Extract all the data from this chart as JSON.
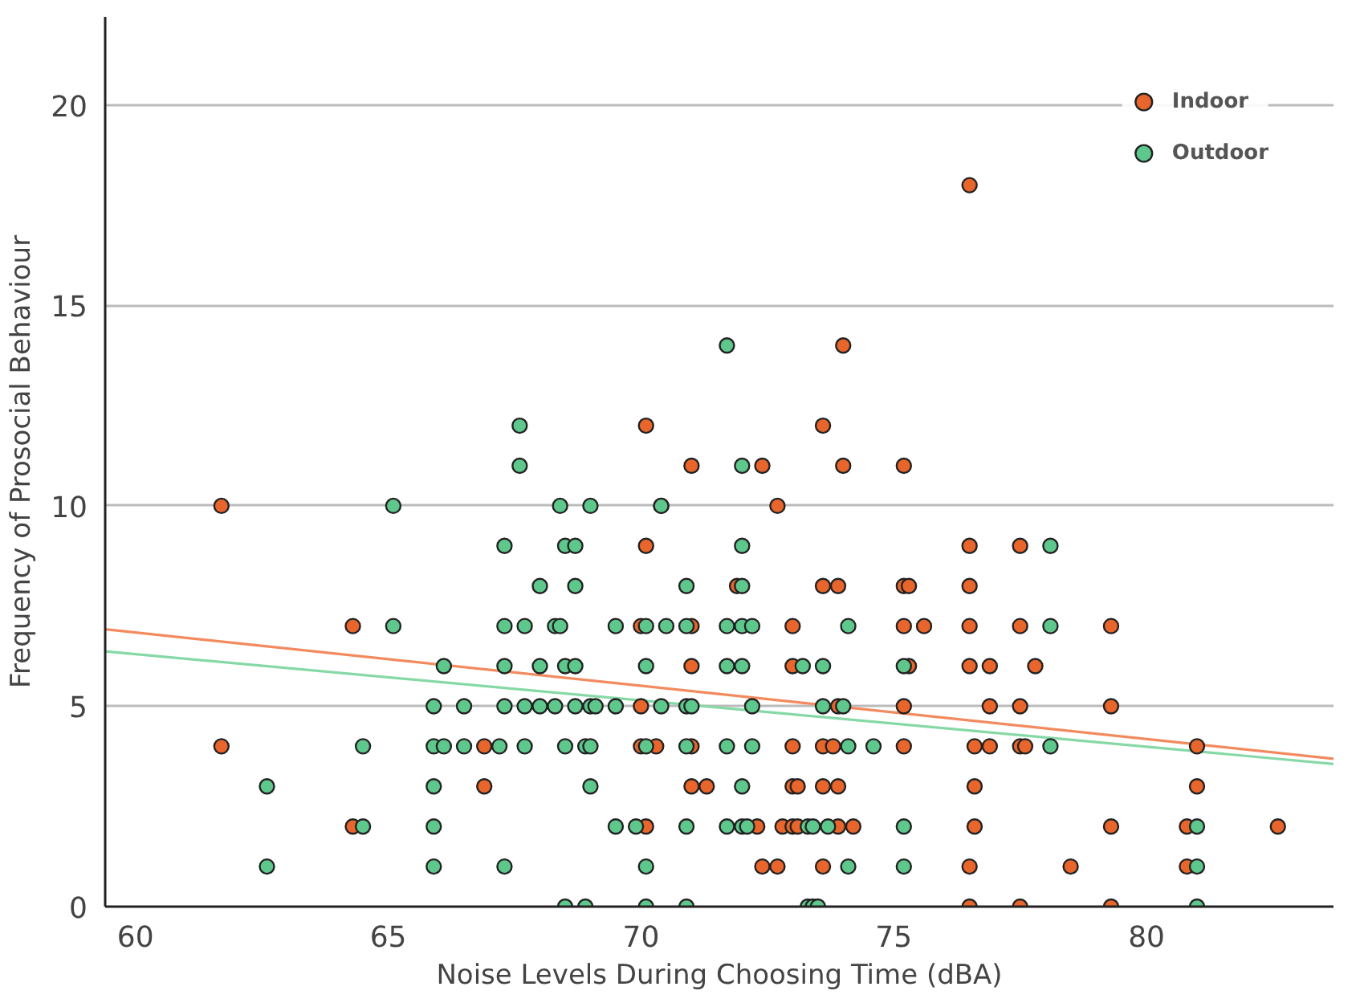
{
  "chart_data": {
    "type": "scatter",
    "xlabel": "Noise Levels During Choosing Time (dBA)",
    "ylabel": "Frequency of Prosocial Behaviour",
    "xlim": [
      59.4,
      83.7
    ],
    "xticks": [
      60,
      65,
      70,
      75,
      80
    ],
    "ylim": [
      0,
      22.2
    ],
    "yticks": [
      0,
      5,
      10,
      15,
      20
    ],
    "grid": "y",
    "legend": "top right",
    "series": [
      {
        "name": "Indoor",
        "color": "#e8652c",
        "marker": "circle",
        "x": [
          76.5,
          74.0,
          70.1,
          73.6,
          71.0,
          72.4,
          74.0,
          75.2,
          61.7,
          72.7,
          70.1,
          76.5,
          77.5,
          71.9,
          73.6,
          73.9,
          75.2,
          75.3,
          76.5,
          64.3,
          70.0,
          71.0,
          73.0,
          75.2,
          75.6,
          76.5,
          77.5,
          79.3,
          71.0,
          73.0,
          75.3,
          76.5,
          76.9,
          77.8,
          70.0,
          73.9,
          75.2,
          76.9,
          77.5,
          79.3,
          61.7,
          66.9,
          70.0,
          70.3,
          71.0,
          73.0,
          73.6,
          73.8,
          75.2,
          76.6,
          76.9,
          77.5,
          77.6,
          81.0,
          66.9,
          71.0,
          71.3,
          73.0,
          73.1,
          73.6,
          73.9,
          76.6,
          81.0,
          64.3,
          70.1,
          72.3,
          72.8,
          73.0,
          73.1,
          73.9,
          74.2,
          76.6,
          79.3,
          80.8,
          82.6,
          72.4,
          72.7,
          73.6,
          76.5,
          78.5,
          80.8,
          76.5,
          77.5,
          79.3
        ],
        "values": [
          18,
          14,
          12,
          12,
          11,
          11,
          11,
          11,
          10,
          10,
          9,
          9,
          9,
          8,
          8,
          8,
          8,
          8,
          8,
          7,
          7,
          7,
          7,
          7,
          7,
          7,
          7,
          7,
          6,
          6,
          6,
          6,
          6,
          6,
          5,
          5,
          5,
          5,
          5,
          5,
          4,
          4,
          4,
          4,
          4,
          4,
          4,
          4,
          4,
          4,
          4,
          4,
          4,
          4,
          3,
          3,
          3,
          3,
          3,
          3,
          3,
          3,
          3,
          2,
          2,
          2,
          2,
          2,
          2,
          2,
          2,
          2,
          2,
          2,
          2,
          1,
          1,
          1,
          1,
          1,
          1,
          0,
          0,
          0
        ]
      },
      {
        "name": "Outdoor",
        "color": "#5ec78c",
        "marker": "circle",
        "x": [
          71.7,
          67.6,
          67.6,
          72.0,
          65.1,
          68.4,
          69.0,
          70.4,
          70.4,
          67.3,
          68.5,
          68.7,
          72.0,
          78.1,
          68.0,
          68.7,
          70.9,
          72.0,
          65.1,
          67.3,
          67.7,
          68.3,
          68.4,
          69.5,
          70.1,
          70.5,
          70.9,
          71.7,
          72.0,
          72.2,
          74.1,
          78.1,
          66.1,
          67.3,
          68.0,
          68.5,
          68.7,
          70.1,
          71.7,
          72.0,
          73.2,
          73.6,
          75.2,
          65.9,
          66.5,
          67.3,
          67.7,
          68.0,
          68.3,
          68.7,
          69.0,
          69.1,
          69.5,
          70.4,
          70.9,
          71.0,
          72.2,
          73.6,
          74.0,
          64.5,
          65.9,
          66.1,
          66.5,
          67.2,
          67.7,
          68.5,
          68.9,
          69.0,
          70.1,
          70.9,
          71.7,
          72.2,
          74.1,
          74.6,
          78.1,
          62.6,
          65.9,
          69.0,
          72.0,
          64.5,
          65.9,
          69.5,
          69.9,
          70.9,
          71.7,
          72.0,
          72.1,
          73.3,
          73.4,
          73.7,
          75.2,
          81.0,
          62.6,
          65.9,
          67.3,
          70.1,
          74.1,
          75.2,
          81.0,
          68.5,
          68.9,
          70.1,
          70.9,
          73.3,
          73.4,
          73.5,
          81.0
        ],
        "values": [
          14,
          12,
          11,
          11,
          10,
          10,
          10,
          10,
          10,
          9,
          9,
          9,
          9,
          9,
          8,
          8,
          8,
          8,
          7,
          7,
          7,
          7,
          7,
          7,
          7,
          7,
          7,
          7,
          7,
          7,
          7,
          7,
          6,
          6,
          6,
          6,
          6,
          6,
          6,
          6,
          6,
          6,
          6,
          5,
          5,
          5,
          5,
          5,
          5,
          5,
          5,
          5,
          5,
          5,
          5,
          5,
          5,
          5,
          5,
          4,
          4,
          4,
          4,
          4,
          4,
          4,
          4,
          4,
          4,
          4,
          4,
          4,
          4,
          4,
          4,
          3,
          3,
          3,
          3,
          2,
          2,
          2,
          2,
          2,
          2,
          2,
          2,
          2,
          2,
          2,
          2,
          2,
          1,
          1,
          1,
          1,
          1,
          1,
          1,
          0,
          0,
          0,
          0,
          0,
          0,
          0,
          0
        ]
      },
      {
        "type": "line",
        "color": "#f28a5e",
        "x": [
          59.4,
          83.7
        ],
        "values": [
          6.92,
          3.69
        ]
      },
      {
        "type": "line",
        "color": "#86d9a6",
        "x": [
          59.4,
          83.7
        ],
        "values": [
          6.37,
          3.56
        ]
      }
    ]
  }
}
